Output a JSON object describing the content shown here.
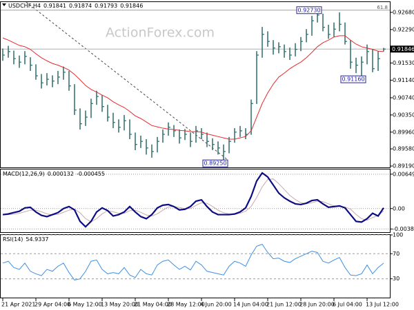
{
  "chart_data": [
    {
      "type": "ohlc",
      "symbol": "USDCHF,H4",
      "header_values": [
        0.91841,
        0.91874,
        0.91793,
        0.91846
      ],
      "watermark": "ActionForex.com",
      "color": "#2b6a6a",
      "high": [
        0.9186,
        0.9192,
        0.9181,
        0.917,
        0.918,
        0.9166,
        0.915,
        0.9128,
        0.913,
        0.9125,
        0.9135,
        0.9145,
        0.9135,
        0.9105,
        0.905,
        0.9045,
        0.9072,
        0.909,
        0.908,
        0.9058,
        0.904,
        0.9025,
        0.9035,
        0.9025,
        0.8995,
        0.8988,
        0.898,
        0.8968,
        0.8985,
        0.9002,
        0.9018,
        0.9012,
        0.9002,
        0.9003,
        0.8995,
        0.901,
        0.9005,
        0.8995,
        0.8982,
        0.8975,
        0.8968,
        0.8985,
        0.9005,
        0.901,
        0.9005,
        0.907,
        0.918,
        0.9235,
        0.9225,
        0.9205,
        0.92,
        0.9195,
        0.9188,
        0.9198,
        0.9212,
        0.923,
        0.926,
        0.9273,
        0.9265,
        0.924,
        0.9245,
        0.9268,
        0.9245,
        0.9205,
        0.9165,
        0.9168,
        0.9195,
        0.9185,
        0.918,
        0.91874
      ],
      "low": [
        0.9158,
        0.9165,
        0.915,
        0.9142,
        0.915,
        0.9135,
        0.9115,
        0.9095,
        0.9102,
        0.9098,
        0.9105,
        0.9115,
        0.909,
        0.9035,
        0.9002,
        0.901,
        0.9028,
        0.9058,
        0.9042,
        0.902,
        0.9005,
        0.8995,
        0.9,
        0.898,
        0.8955,
        0.896,
        0.8945,
        0.8938,
        0.895,
        0.8972,
        0.8988,
        0.8985,
        0.897,
        0.8978,
        0.8962,
        0.8972,
        0.898,
        0.8962,
        0.8955,
        0.8945,
        0.8925,
        0.8948,
        0.8972,
        0.8985,
        0.898,
        0.899,
        0.906,
        0.9165,
        0.919,
        0.9172,
        0.9175,
        0.9165,
        0.916,
        0.9168,
        0.918,
        0.92,
        0.9215,
        0.9245,
        0.9225,
        0.9208,
        0.9212,
        0.9225,
        0.9195,
        0.914,
        0.913,
        0.9116,
        0.915,
        0.9132,
        0.9135,
        0.91793
      ],
      "close": [
        0.9171,
        0.9179,
        0.9163,
        0.9155,
        0.9168,
        0.9148,
        0.9124,
        0.9108,
        0.9116,
        0.9112,
        0.9121,
        0.9132,
        0.9101,
        0.9046,
        0.9015,
        0.903,
        0.9061,
        0.9077,
        0.9054,
        0.903,
        0.9018,
        0.9007,
        0.9022,
        0.8991,
        0.8968,
        0.8975,
        0.896,
        0.8952,
        0.8975,
        0.8991,
        0.9007,
        0.8999,
        0.8983,
        0.8991,
        0.8975,
        0.8999,
        0.8991,
        0.8975,
        0.8968,
        0.896,
        0.8952,
        0.8975,
        0.8996,
        0.8999,
        0.8991,
        0.9061,
        0.9171,
        0.9218,
        0.9202,
        0.9187,
        0.919,
        0.9179,
        0.9171,
        0.9184,
        0.9202,
        0.9218,
        0.9249,
        0.9262,
        0.9234,
        0.9218,
        0.923,
        0.9241,
        0.9202,
        0.9155,
        0.9148,
        0.9155,
        0.9179,
        0.914,
        0.9163,
        0.91846
      ],
      "overlay": {
        "color": "#e8282c",
        "values": [
          0.921,
          0.9205,
          0.9199,
          0.9193,
          0.919,
          0.9184,
          0.9174,
          0.9165,
          0.9158,
          0.9152,
          0.9148,
          0.9143,
          0.9137,
          0.9127,
          0.9115,
          0.9102,
          0.9093,
          0.9087,
          0.908,
          0.9074,
          0.9065,
          0.9058,
          0.9052,
          0.9043,
          0.9033,
          0.9027,
          0.9019,
          0.9011,
          0.9008,
          0.9005,
          0.9003,
          0.9002,
          0.9,
          0.8999,
          0.8997,
          0.8997,
          0.8996,
          0.8992,
          0.8989,
          0.8986,
          0.8983,
          0.898,
          0.898,
          0.8983,
          0.8986,
          0.8999,
          0.903,
          0.9061,
          0.9085,
          0.9105,
          0.9121,
          0.913,
          0.914,
          0.9148,
          0.9155,
          0.9165,
          0.9177,
          0.919,
          0.9199,
          0.9205,
          0.9212,
          0.9215,
          0.9215,
          0.9205,
          0.9196,
          0.919,
          0.9187,
          0.9184,
          0.918,
          0.9179
        ]
      },
      "ylim": [
        0.89159,
        0.92914
      ],
      "yticks": [
        {
          "value": 0.9268,
          "label": "0.92680"
        },
        {
          "value": 0.9229,
          "label": "0.92290"
        },
        {
          "value": 0.9153,
          "label": "0.91530"
        },
        {
          "value": 0.9114,
          "label": "0.91140"
        },
        {
          "value": 0.9074,
          "label": "0.90740"
        },
        {
          "value": 0.9035,
          "label": "0.90350"
        },
        {
          "value": 0.8996,
          "label": "0.89960"
        },
        {
          "value": 0.8958,
          "label": "0.89580"
        },
        {
          "value": 0.8919,
          "label": "0.89190"
        }
      ],
      "last_price": 0.91846,
      "fib_level": {
        "value": 0.9273,
        "label": "61.8"
      },
      "annotations": [
        {
          "at": 57,
          "value": 0.9273,
          "label": "0.92730"
        },
        {
          "at": 65,
          "value": 0.9116,
          "label": "0.91160"
        },
        {
          "at": 40,
          "value": 0.8925,
          "label": "0.89250"
        }
      ]
    },
    {
      "type": "macd",
      "title": "MACD(12,26,9)",
      "header_values": [
        0.000132,
        -0.000455
      ],
      "macd": {
        "color": "#0c0c84",
        "values": [
          -0.00114,
          -0.00102,
          -0.00076,
          -0.00051,
          0.00013,
          0.00025,
          -0.00064,
          -0.00127,
          -0.00152,
          -0.00114,
          -0.00076,
          0,
          0.00038,
          -0.00025,
          -0.00241,
          -0.00343,
          -0.00241,
          -0.00064,
          0.00013,
          -0.00038,
          -0.0014,
          -0.00114,
          -0.00064,
          0.00038,
          -0.00064,
          -0.00152,
          -0.00191,
          -0.00114,
          0.00013,
          0.00064,
          0.00076,
          0.00038,
          -0.00025,
          -0.00013,
          0.00038,
          0.0014,
          0.00165,
          0.00038,
          -0.00064,
          -0.00114,
          -0.00114,
          -0.00114,
          -0.00102,
          -0.00064,
          0.00013,
          0.00229,
          0.00521,
          0.00673,
          0.00597,
          0.00445,
          0.00292,
          0.00203,
          0.0014,
          0.00089,
          0.00076,
          0.00102,
          0.00152,
          0.00165,
          0.00089,
          0.00025,
          0.00038,
          0.00051,
          0.00013,
          -0.00114,
          -0.00241,
          -0.00254,
          -0.00191,
          -0.00089,
          -0.0014,
          0.000132
        ]
      },
      "signal": {
        "color": "#c9a9a9",
        "values": [
          -0.0012,
          -0.00115,
          -0.00105,
          -0.0009,
          -0.0006,
          -0.0003,
          -0.0003,
          -0.0006,
          -0.001,
          -0.0012,
          -0.0011,
          -0.0007,
          -0.0003,
          -0.0001,
          -0.0008,
          -0.0019,
          -0.0025,
          -0.0019,
          -0.001,
          -0.0004,
          -0.0006,
          -0.0009,
          -0.0009,
          -0.0004,
          -0.0003,
          -0.0007,
          -0.0012,
          -0.0014,
          -0.001,
          -0.0003,
          0.0003,
          0.0004,
          0.0002,
          0,
          0,
          0.0006,
          0.0011,
          0.001,
          0.0004,
          -0.0003,
          -0.0008,
          -0.001,
          -0.0011,
          -0.0009,
          -0.0005,
          0.0004,
          0.0021,
          0.0041,
          0.0055,
          0.0056,
          0.0047,
          0.0036,
          0.0025,
          0.0017,
          0.0011,
          0.0009,
          0.0011,
          0.0014,
          0.0013,
          0.0009,
          0.0005,
          0.0004,
          0.0003,
          -0.0001,
          -0.0011,
          -0.0019,
          -0.0022,
          -0.0017,
          -0.0013,
          -0.000455
        ]
      },
      "ylim": [
        -0.00445,
        0.00738
      ],
      "yticks": [
        0.00649,
        {
          "value": 0,
          "label": "0.00"
        },
        -0.003855
      ]
    },
    {
      "type": "rsi",
      "title": "RSI(14)",
      "header_values": [
        54.9337
      ],
      "color": "#3a8fe6",
      "values": [
        55,
        58,
        48,
        45,
        55,
        42,
        38,
        35,
        45,
        42,
        50,
        55,
        40,
        28,
        30,
        42,
        58,
        60,
        45,
        38,
        40,
        38,
        48,
        36,
        32,
        45,
        38,
        36,
        52,
        58,
        60,
        52,
        45,
        50,
        44,
        58,
        52,
        42,
        40,
        38,
        36,
        50,
        58,
        55,
        50,
        68,
        82,
        85,
        72,
        62,
        63,
        58,
        56,
        62,
        66,
        70,
        74,
        72,
        58,
        55,
        60,
        64,
        48,
        36,
        35,
        38,
        52,
        38,
        48,
        54.9337
      ],
      "ylim": [
        0,
        100
      ],
      "yticks": [
        100,
        70,
        30
      ],
      "grid": "dashed",
      "categories": [
        "21 Apr 2021",
        null,
        null,
        null,
        null,
        null,
        "29 Apr 04:00",
        null,
        null,
        null,
        null,
        null,
        "6 May 12:00",
        null,
        null,
        null,
        null,
        null,
        "13 May 20:00",
        null,
        null,
        null,
        null,
        null,
        "21 May 04:00",
        null,
        null,
        null,
        null,
        null,
        "28 May 12:00",
        null,
        null,
        null,
        null,
        null,
        "4 Jun 20:00",
        null,
        null,
        null,
        null,
        null,
        "14 Jun 04:00",
        null,
        null,
        null,
        null,
        null,
        "21 Jun 12:00",
        null,
        null,
        null,
        null,
        null,
        "28 Jun 20:00",
        null,
        null,
        null,
        null,
        null,
        "6 Jul 04:00",
        null,
        null,
        null,
        null,
        null,
        "13 Jul 12:00",
        null,
        null,
        null
      ]
    }
  ]
}
